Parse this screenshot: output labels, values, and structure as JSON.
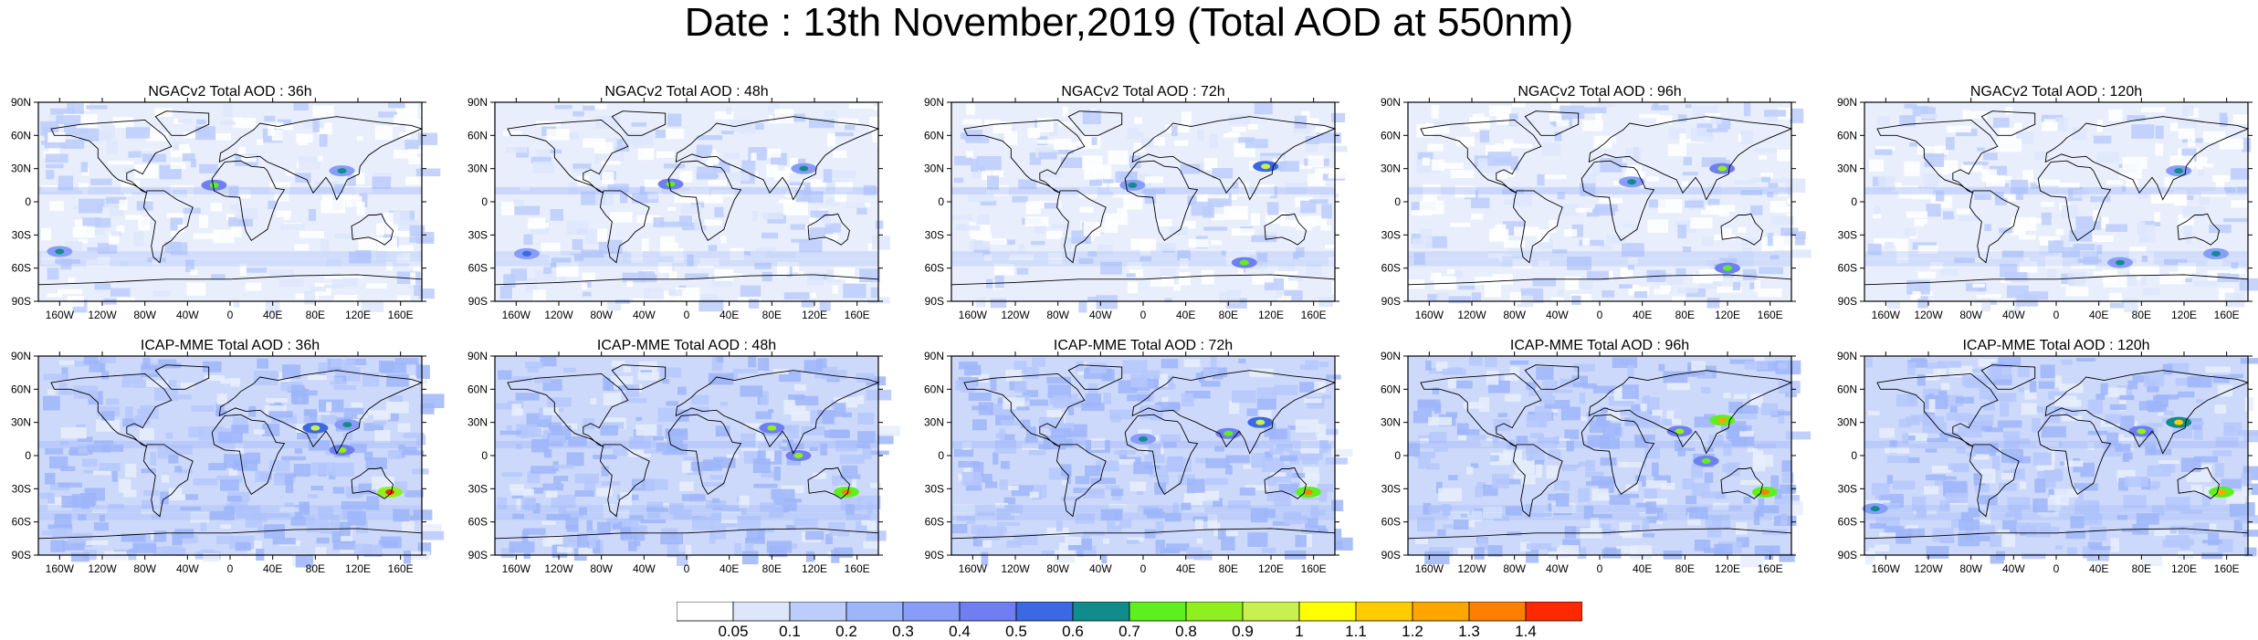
{
  "title": "Date : 13th November,2019 (Total AOD at 550nm)",
  "lat_labels": [
    "90N",
    "60N",
    "30N",
    "0",
    "30S",
    "60S",
    "90S"
  ],
  "lon_labels": [
    "160W",
    "120W",
    "80W",
    "40W",
    "0",
    "40E",
    "80E",
    "120E",
    "160E"
  ],
  "panels": [
    {
      "title": "NGACv2 Total AOD : 36h",
      "model": "NGACv2",
      "lead": "36h",
      "hotspots": [
        {
          "lon": -15,
          "lat": 15,
          "level": 0.7
        },
        {
          "lon": 105,
          "lat": 28,
          "level": 0.6
        },
        {
          "lon": -160,
          "lat": -45,
          "level": 0.6
        }
      ]
    },
    {
      "title": "NGACv2 Total AOD : 48h",
      "model": "NGACv2",
      "lead": "48h",
      "hotspots": [
        {
          "lon": -15,
          "lat": 16,
          "level": 0.7
        },
        {
          "lon": 110,
          "lat": 30,
          "level": 0.6
        },
        {
          "lon": -150,
          "lat": -47,
          "level": 0.5
        }
      ]
    },
    {
      "title": "NGACv2 Total AOD : 72h",
      "model": "NGACv2",
      "lead": "72h",
      "hotspots": [
        {
          "lon": 115,
          "lat": 32,
          "level": 0.9
        },
        {
          "lon": -10,
          "lat": 15,
          "level": 0.6
        },
        {
          "lon": 95,
          "lat": -55,
          "level": 0.7
        }
      ]
    },
    {
      "title": "NGACv2 Total AOD : 96h",
      "model": "NGACv2",
      "lead": "96h",
      "hotspots": [
        {
          "lon": 115,
          "lat": 30,
          "level": 0.8
        },
        {
          "lon": 30,
          "lat": 18,
          "level": 0.6
        },
        {
          "lon": 120,
          "lat": -60,
          "level": 0.7
        }
      ]
    },
    {
      "title": "NGACv2 Total AOD : 120h",
      "model": "NGACv2",
      "lead": "120h",
      "hotspots": [
        {
          "lon": 115,
          "lat": 28,
          "level": 0.6
        },
        {
          "lon": 60,
          "lat": -55,
          "level": 0.6
        },
        {
          "lon": 150,
          "lat": -47,
          "level": 0.6
        }
      ]
    },
    {
      "title": "ICAP-MME Total AOD : 36h",
      "model": "ICAP-MME",
      "lead": "36h",
      "hotspots": [
        {
          "lon": 80,
          "lat": 25,
          "level": 0.9
        },
        {
          "lon": 105,
          "lat": 5,
          "level": 0.8
        },
        {
          "lon": 150,
          "lat": -33,
          "level": 1.4
        },
        {
          "lon": 110,
          "lat": 28,
          "level": 0.6
        }
      ]
    },
    {
      "title": "ICAP-MME Total AOD : 48h",
      "model": "ICAP-MME",
      "lead": "48h",
      "hotspots": [
        {
          "lon": 80,
          "lat": 25,
          "level": 0.8
        },
        {
          "lon": 105,
          "lat": 0,
          "level": 0.8
        },
        {
          "lon": 150,
          "lat": -33,
          "level": 1.3
        }
      ]
    },
    {
      "title": "ICAP-MME Total AOD : 72h",
      "model": "ICAP-MME",
      "lead": "72h",
      "hotspots": [
        {
          "lon": 110,
          "lat": 30,
          "level": 0.9
        },
        {
          "lon": 80,
          "lat": 20,
          "level": 0.7
        },
        {
          "lon": 155,
          "lat": -33,
          "level": 1.3
        },
        {
          "lon": 0,
          "lat": 15,
          "level": 0.6
        }
      ]
    },
    {
      "title": "ICAP-MME Total AOD : 96h",
      "model": "ICAP-MME",
      "lead": "96h",
      "hotspots": [
        {
          "lon": 115,
          "lat": 32,
          "level": 1.2
        },
        {
          "lon": 75,
          "lat": 22,
          "level": 0.8
        },
        {
          "lon": 155,
          "lat": -33,
          "level": 1.3
        },
        {
          "lon": 100,
          "lat": -5,
          "level": 0.7
        }
      ]
    },
    {
      "title": "ICAP-MME Total AOD : 120h",
      "model": "ICAP-MME",
      "lead": "120h",
      "hotspots": [
        {
          "lon": 115,
          "lat": 30,
          "level": 1.1
        },
        {
          "lon": 80,
          "lat": 22,
          "level": 0.8
        },
        {
          "lon": 155,
          "lat": -33,
          "level": 1.2
        },
        {
          "lon": -170,
          "lat": -48,
          "level": 0.6
        }
      ]
    }
  ],
  "colorbar": {
    "labels": [
      "0.05",
      "0.1",
      "0.2",
      "0.3",
      "0.4",
      "0.5",
      "0.6",
      "0.7",
      "0.8",
      "0.9",
      "1",
      "1.1",
      "1.2",
      "1.3",
      "1.4"
    ],
    "colors": [
      "#ffffff",
      "#dde6fb",
      "#bccdfb",
      "#9db5f9",
      "#879df7",
      "#6f7ff2",
      "#3c68e4",
      "#118c8c",
      "#5ef01e",
      "#8ef01e",
      "#c8f050",
      "#ffff00",
      "#ffcc00",
      "#ffa500",
      "#ff7f00",
      "#ff2800"
    ]
  }
}
